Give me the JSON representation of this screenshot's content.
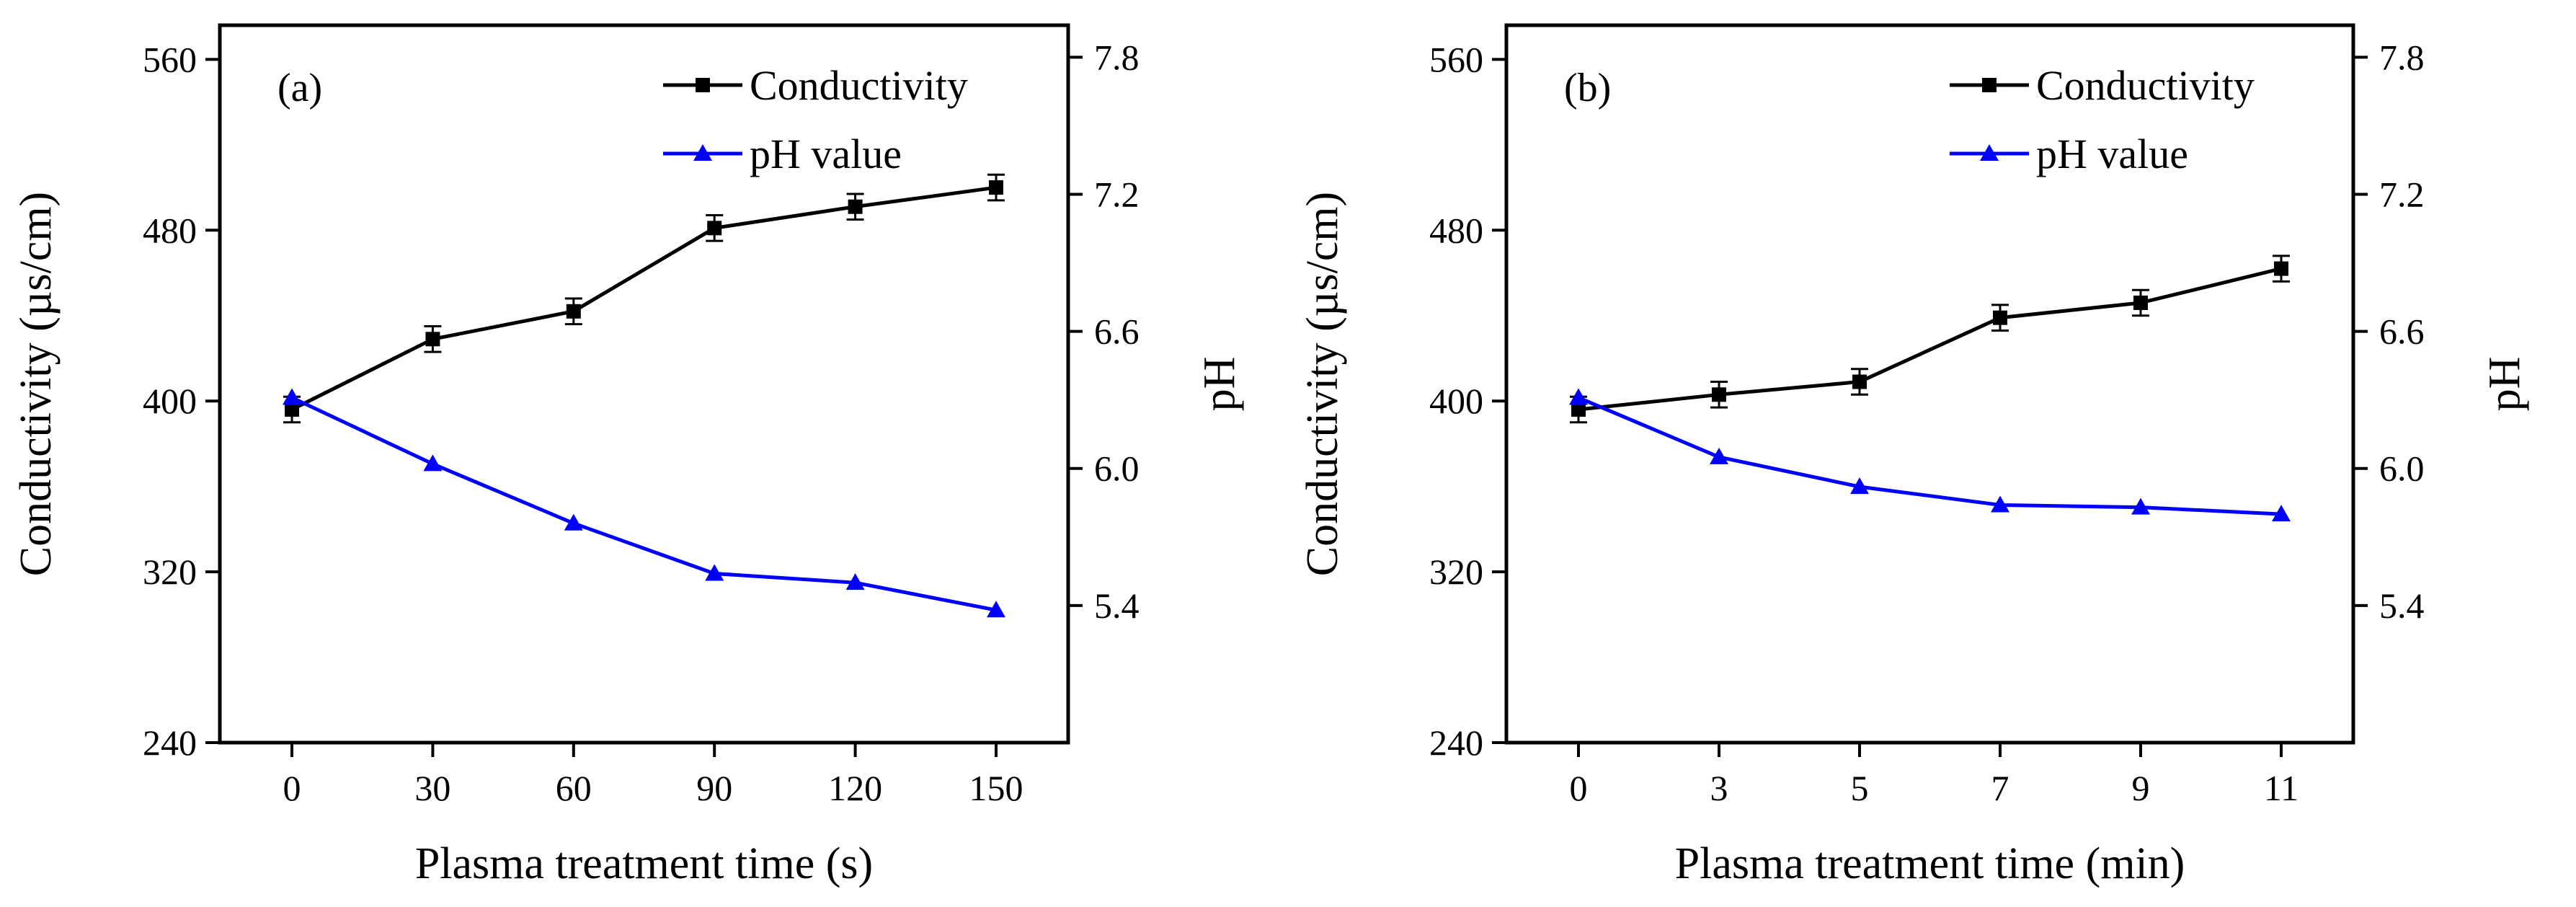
{
  "chart_data": [
    {
      "type": "line",
      "panel_label": "(a)",
      "xlabel": "Plasma treatment time (s)",
      "ylabel": "Conductivity (µs/cm)",
      "ylabel_right": "pH",
      "categories": [
        "0",
        "30",
        "60",
        "90",
        "120",
        "150"
      ],
      "ylim": [
        240,
        576
      ],
      "yticks": [
        "240",
        "320",
        "400",
        "480",
        "560"
      ],
      "ylim_right": [
        4.8,
        7.94
      ],
      "yticks_right": [
        "5.4",
        "6.0",
        "6.6",
        "7.2",
        "7.8"
      ],
      "grid": false,
      "legend_position": "top-right",
      "series": [
        {
          "name": "Conductivity",
          "axis": "left",
          "marker": "square",
          "color": "#000000",
          "values": [
            396,
            429,
            442,
            481,
            491,
            500
          ],
          "error": [
            6,
            6,
            6,
            6,
            6,
            6
          ]
        },
        {
          "name": "pH value",
          "axis": "right",
          "marker": "triangle",
          "color": "#0000ff",
          "values": [
            6.31,
            6.02,
            5.76,
            5.54,
            5.5,
            5.38
          ]
        }
      ]
    },
    {
      "type": "line",
      "panel_label": "(b)",
      "xlabel": "Plasma treatment time (min)",
      "ylabel": "Conductivity (µs/cm)",
      "ylabel_right": "pH",
      "categories": [
        "0",
        "3",
        "5",
        "7",
        "9",
        "11"
      ],
      "ylim": [
        240,
        576
      ],
      "yticks": [
        "240",
        "320",
        "400",
        "480",
        "560"
      ],
      "ylim_right": [
        4.8,
        7.94
      ],
      "yticks_right": [
        "5.4",
        "6.0",
        "6.6",
        "7.2",
        "7.8"
      ],
      "grid": false,
      "legend_position": "top-right",
      "series": [
        {
          "name": "Conductivity",
          "axis": "left",
          "marker": "square",
          "color": "#000000",
          "values": [
            396,
            403,
            409,
            439,
            446,
            462
          ],
          "error": [
            6,
            6,
            6,
            6,
            6,
            6
          ]
        },
        {
          "name": "pH value",
          "axis": "right",
          "marker": "triangle",
          "color": "#0000ff",
          "values": [
            6.31,
            6.05,
            5.92,
            5.84,
            5.83,
            5.8
          ]
        }
      ]
    }
  ]
}
